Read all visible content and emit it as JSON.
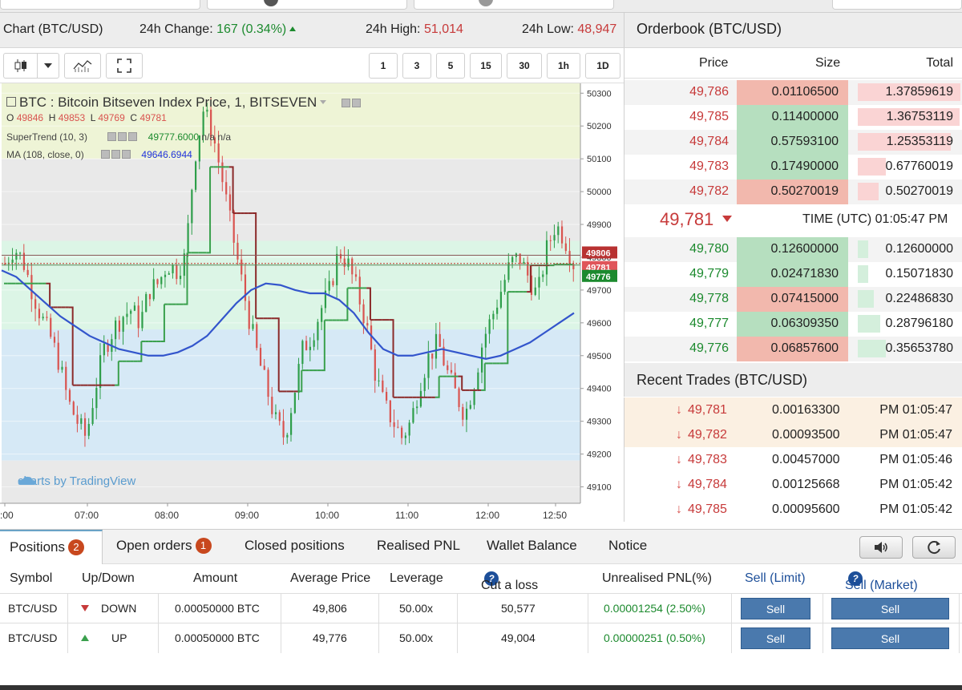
{
  "header": {
    "chart_title": "Chart (BTC/USD)",
    "change_label": "24h Change:",
    "change_value": "167 (0.34%)",
    "high_label": "24h High:",
    "high_value": "51,014",
    "low_label": "24h Low:",
    "low_value": "48,947"
  },
  "toolbar": {
    "intervals": [
      "1",
      "3",
      "5",
      "15",
      "30",
      "1h",
      "1D"
    ]
  },
  "chart": {
    "legend_title": "BTC : Bitcoin Bitseven Index Price, 1, BITSEVEN",
    "ohlc": {
      "o_label": "O",
      "o": "49846",
      "h_label": "H",
      "h": "49853",
      "l_label": "L",
      "l": "49769",
      "c_label": "C",
      "c": "49781"
    },
    "supertrend_label": "SuperTrend (10, 3)",
    "supertrend_value": "49777.6000",
    "supertrend_na1": "n/a",
    "supertrend_na2": "n/a",
    "ma_label": "MA (108, close, 0)",
    "ma_value": "49646.6944",
    "watermark": "charts by TradingView",
    "price_tags": [
      "49806",
      "49781",
      "49776"
    ],
    "colors": {
      "up": "#2e9e4a",
      "down": "#d9534f",
      "ma": "#3355cc",
      "supertrend_up": "#3aa04d",
      "supertrend_down": "#8b2a2a"
    }
  },
  "chart_data": {
    "type": "candlestick",
    "title": "BTC : Bitcoin Bitseven Index Price, 1, BITSEVEN",
    "xlabel": "",
    "ylabel": "",
    "x_ticks": [
      ":00",
      "07:00",
      "08:00",
      "09:00",
      "10:00",
      "11:00",
      "12:00",
      "12:50"
    ],
    "y_ticks": [
      49100,
      49200,
      49300,
      49400,
      49500,
      49600,
      49700,
      49800,
      49900,
      50000,
      50100,
      50200,
      50300
    ],
    "ylim": [
      49050,
      50330
    ],
    "close_path": [
      49780,
      49830,
      49790,
      49700,
      49620,
      49560,
      49480,
      49360,
      49300,
      49250,
      49400,
      49520,
      49580,
      49620,
      49640,
      49600,
      49700,
      49720,
      49780,
      49760,
      49800,
      50100,
      50250,
      50180,
      50050,
      49900,
      49760,
      49620,
      49500,
      49400,
      49300,
      49250,
      49380,
      49520,
      49560,
      49640,
      49700,
      49820,
      49780,
      49700,
      49600,
      49450,
      49350,
      49300,
      49250,
      49300,
      49420,
      49500,
      49540,
      49450,
      49380,
      49320,
      49420,
      49550,
      49620,
      49700,
      49780,
      49800,
      49740,
      49680,
      49820,
      49900,
      49860,
      49781
    ],
    "ma_path": [
      49760,
      49740,
      49700,
      49660,
      49620,
      49590,
      49560,
      49540,
      49520,
      49510,
      49500,
      49500,
      49510,
      49530,
      49560,
      49610,
      49660,
      49700,
      49720,
      49715,
      49700,
      49690,
      49690,
      49670,
      49630,
      49570,
      49520,
      49500,
      49500,
      49510,
      49520,
      49510,
      49500,
      49490,
      49500,
      49520,
      49540,
      49570,
      49600,
      49630
    ],
    "current_price": 49781
  },
  "orderbook": {
    "title": "Orderbook (BTC/USD)",
    "col_price": "Price",
    "col_size": "Size",
    "col_total": "Total",
    "asks": [
      {
        "price": "49,786",
        "size": "0.01106500",
        "total": "1.37859619",
        "size_color": "#f2b8ad",
        "bar": 1.0
      },
      {
        "price": "49,785",
        "size": "0.11400000",
        "total": "1.36753119",
        "size_color": "#b6dfbf",
        "bar": 0.99
      },
      {
        "price": "49,784",
        "size": "0.57593100",
        "total": "1.25353119",
        "size_color": "#b6dfbf",
        "bar": 0.91
      },
      {
        "price": "49,783",
        "size": "0.17490000",
        "total": "0.67760019",
        "size_color": "#b6dfbf",
        "bar": 0.27
      },
      {
        "price": "49,782",
        "size": "0.50270019",
        "total": "0.50270019",
        "size_color": "#f2b8ad",
        "bar": 0.2
      }
    ],
    "mid_price": "49,781",
    "time_text": "TIME (UTC) 01:05:47 PM",
    "bids": [
      {
        "price": "49,780",
        "size": "0.12600000",
        "total": "0.12600000",
        "size_color": "#b6dfbf",
        "bar": 0.1
      },
      {
        "price": "49,779",
        "size": "0.02471830",
        "total": "0.15071830",
        "size_color": "#b6dfbf",
        "bar": 0.1
      },
      {
        "price": "49,778",
        "size": "0.07415000",
        "total": "0.22486830",
        "size_color": "#f2b8ad",
        "bar": 0.16
      },
      {
        "price": "49,777",
        "size": "0.06309350",
        "total": "0.28796180",
        "size_color": "#b6dfbf",
        "bar": 0.22
      },
      {
        "price": "49,776",
        "size": "0.06857600",
        "total": "0.35653780",
        "size_color": "#f2b8ad",
        "bar": 0.27
      }
    ]
  },
  "recent_trades": {
    "title": "Recent Trades (BTC/USD)",
    "rows": [
      {
        "price": "49,781",
        "size": "0.00163300",
        "time": "PM 01:05:47",
        "bg": "#fbf0e2"
      },
      {
        "price": "49,782",
        "size": "0.00093500",
        "time": "PM 01:05:47",
        "bg": "#fbf0e2"
      },
      {
        "price": "49,783",
        "size": "0.00457000",
        "time": "PM 01:05:46",
        "bg": "#ffffff"
      },
      {
        "price": "49,784",
        "size": "0.00125668",
        "time": "PM 01:05:42",
        "bg": "#ffffff"
      },
      {
        "price": "49,785",
        "size": "0.00095600",
        "time": "PM 01:05:42",
        "bg": "#ffffff"
      }
    ]
  },
  "tabs": {
    "positions": "Positions",
    "positions_count": "2",
    "open_orders": "Open orders",
    "open_orders_count": "1",
    "closed_positions": "Closed positions",
    "realised_pnl": "Realised PNL",
    "wallet_balance": "Wallet Balance",
    "notice": "Notice"
  },
  "positions": {
    "headers": {
      "symbol": "Symbol",
      "updown": "Up/Down",
      "amount": "Amount",
      "avg_price": "Average Price",
      "leverage": "Leverage",
      "cut_loss": "Cut a loss",
      "pnl": "Unrealised PNL(%)",
      "sell_limit": "Sell (Limit)",
      "sell_market": "Sell (Market)"
    },
    "rows": [
      {
        "symbol": "BTC/USD",
        "direction": "DOWN",
        "amount": "0.00050000 BTC",
        "avg_price": "49,806",
        "leverage": "50.00x",
        "cut_loss": "50,577",
        "pnl": "0.00001254 (2.50%)",
        "sell_limit": "Sell",
        "sell_market": "Sell"
      },
      {
        "symbol": "BTC/USD",
        "direction": "UP",
        "amount": "0.00050000 BTC",
        "avg_price": "49,776",
        "leverage": "50.00x",
        "cut_loss": "49,004",
        "pnl": "0.00000251 (0.50%)",
        "sell_limit": "Sell",
        "sell_market": "Sell"
      }
    ]
  },
  "help_glyph": "?"
}
